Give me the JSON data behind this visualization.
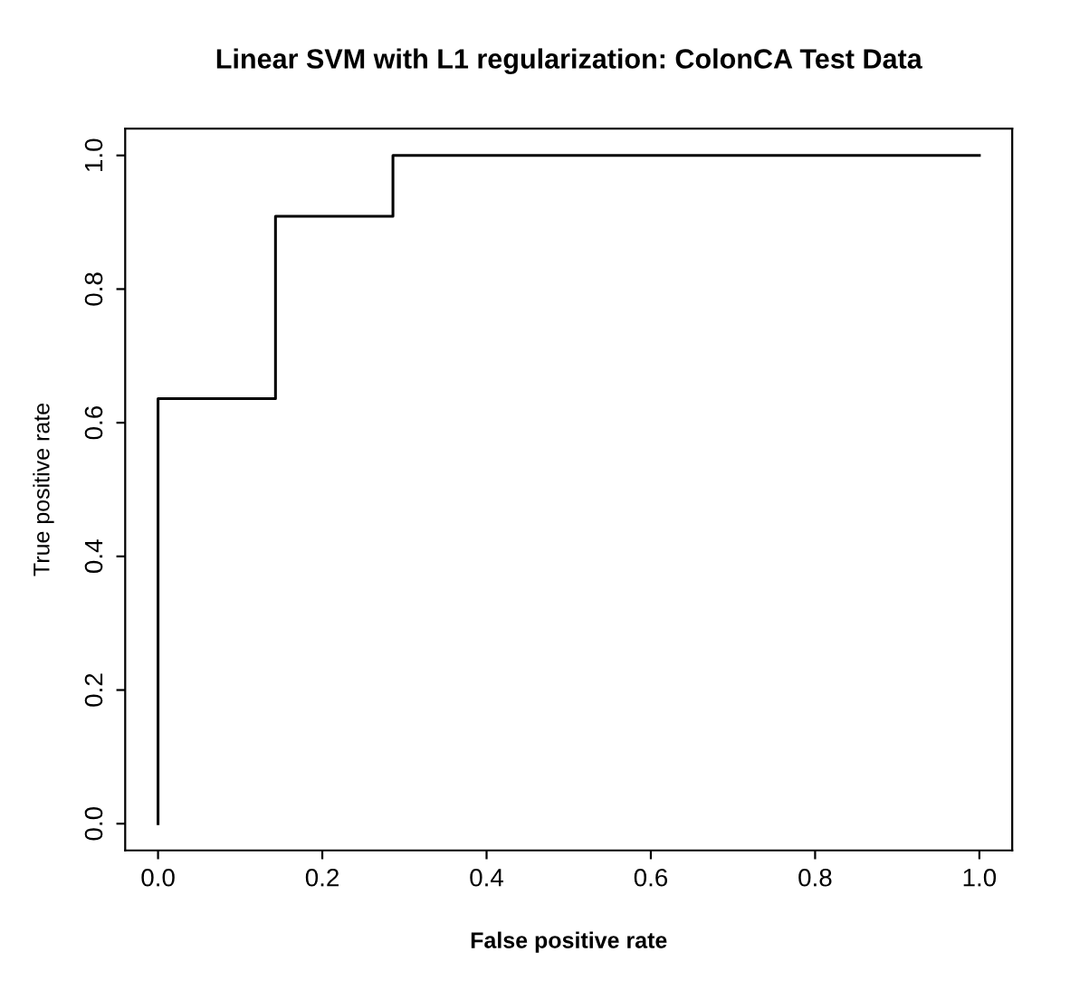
{
  "chart_data": {
    "type": "line",
    "title": "Linear SVM with L1 regularization: ColonCA Test Data",
    "xlabel": "False positive rate",
    "ylabel": "True positive rate",
    "x": [
      0,
      0,
      0.143,
      0.143,
      0.286,
      0.286,
      1
    ],
    "series": [
      {
        "color": "#000000",
        "values": [
          0,
          0.636,
          0.636,
          0.909,
          0.909,
          1,
          1
        ]
      }
    ],
    "xlim": [
      -0.04,
      1.04
    ],
    "ylim": [
      -0.04,
      1.04
    ],
    "xticks": [
      {
        "value": 0,
        "label": "0.0"
      },
      0.2,
      0.4,
      0.6,
      0.8,
      {
        "value": 1,
        "label": "1.0"
      }
    ],
    "yticks": [
      {
        "value": 0,
        "label": "0.0"
      },
      0.2,
      0.4,
      0.6,
      0.8,
      {
        "value": 1,
        "label": "1.0"
      }
    ],
    "grid": false,
    "legend": false,
    "marker": "none",
    "line_style": "solid"
  }
}
